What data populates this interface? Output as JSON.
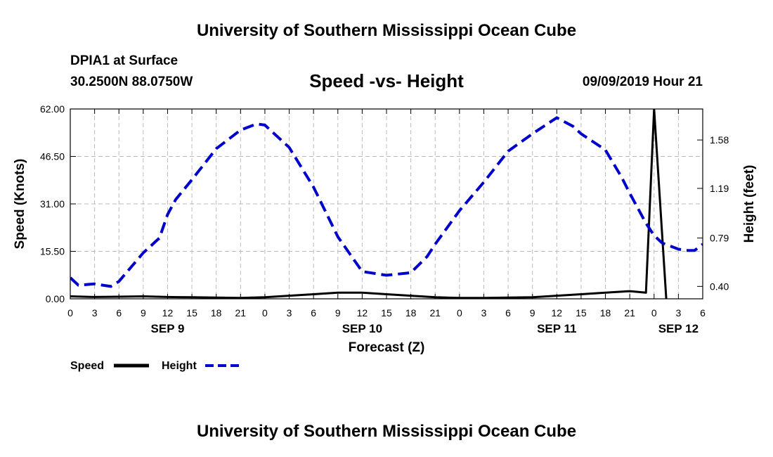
{
  "page": {
    "top_title": "University of Southern Mississippi Ocean Cube",
    "bottom_title": "University of Southern Mississippi Ocean Cube",
    "station": "DPIA1 at Surface",
    "coordinates": "30.2500N 88.0750W",
    "timestamp": "09/09/2019 Hour 21"
  },
  "colors": {
    "speed": "#000000",
    "height": "#0000cc",
    "grid": "#bbbbbb"
  },
  "chart_data": {
    "type": "line",
    "title": "Speed -vs- Height",
    "xlabel": "Forecast (Z)",
    "ylabel_left": "Speed (Knots)",
    "ylabel_right": "Height (feet)",
    "x_range": [
      0,
      78
    ],
    "x_ticks": [
      0,
      3,
      6,
      9,
      12,
      15,
      18,
      21,
      24,
      27,
      30,
      33,
      36,
      39,
      42,
      45,
      48,
      51,
      54,
      57,
      60,
      63,
      66,
      69,
      72,
      75,
      78
    ],
    "x_tick_labels": [
      "0",
      "3",
      "6",
      "9",
      "12",
      "15",
      "18",
      "21",
      "0",
      "3",
      "6",
      "9",
      "12",
      "15",
      "18",
      "21",
      "0",
      "3",
      "6",
      "9",
      "12",
      "15",
      "18",
      "21",
      "0",
      "3",
      "6"
    ],
    "date_labels": [
      {
        "label": "SEP 9",
        "hour": 12
      },
      {
        "label": "SEP 10",
        "hour": 36
      },
      {
        "label": "SEP 11",
        "hour": 60
      },
      {
        "label": "SEP 12",
        "hour": 75
      }
    ],
    "ylim_left": [
      0,
      62
    ],
    "y_ticks_left": [
      0,
      15.5,
      31,
      46.5,
      62
    ],
    "y_tick_labels_left": [
      "0.00",
      "15.50",
      "31.00",
      "46.50",
      "62.00"
    ],
    "ylim_right": [
      0.3,
      1.83
    ],
    "y_ticks_right": [
      0.4,
      0.79,
      1.19,
      1.58
    ],
    "y_tick_labels_right": [
      "0.40",
      "0.79",
      "1.19",
      "1.58"
    ],
    "grid": true,
    "legend": [
      {
        "name": "Speed",
        "style": "solid",
        "color": "#000000"
      },
      {
        "name": "Height",
        "style": "dashed",
        "color": "#0000cc"
      }
    ],
    "series": [
      {
        "name": "Speed",
        "axis": "left",
        "style": "solid",
        "x": [
          0,
          3,
          6,
          9,
          12,
          15,
          18,
          21,
          24,
          27,
          30,
          33,
          36,
          39,
          42,
          45,
          48,
          51,
          54,
          57,
          60,
          63,
          66,
          69,
          71,
          72,
          73.5
        ],
        "values": [
          0.8,
          0.6,
          0.7,
          0.8,
          0.6,
          0.5,
          0.4,
          0.3,
          0.5,
          1.0,
          1.5,
          2.0,
          2.0,
          1.5,
          1.0,
          0.5,
          0.3,
          0.3,
          0.4,
          0.5,
          1.0,
          1.5,
          2.0,
          2.5,
          2.0,
          62,
          0
        ]
      },
      {
        "name": "Height",
        "axis": "right",
        "style": "dashed",
        "x": [
          0,
          1,
          3,
          5,
          6,
          9,
          11,
          12,
          13,
          15,
          18,
          21,
          23,
          24,
          27,
          30,
          33,
          36,
          39,
          42,
          44,
          45,
          48,
          51,
          54,
          57,
          60,
          62,
          63,
          66,
          68,
          69,
          71,
          72,
          73,
          75,
          76,
          77,
          78
        ],
        "values": [
          0.47,
          0.41,
          0.42,
          0.4,
          0.44,
          0.67,
          0.79,
          0.98,
          1.1,
          1.26,
          1.51,
          1.66,
          1.71,
          1.7,
          1.52,
          1.2,
          0.8,
          0.52,
          0.49,
          0.51,
          0.64,
          0.74,
          1.01,
          1.24,
          1.49,
          1.63,
          1.76,
          1.69,
          1.63,
          1.5,
          1.28,
          1.15,
          0.91,
          0.81,
          0.75,
          0.7,
          0.69,
          0.69,
          0.74
        ]
      }
    ]
  }
}
